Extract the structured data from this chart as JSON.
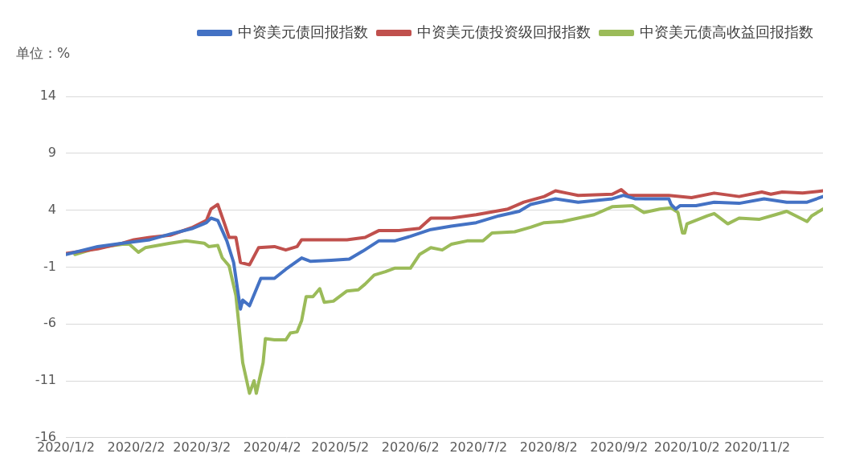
{
  "chart_data": {
    "type": "line",
    "ylabel": "单位：%",
    "legend": "top",
    "grid": "y",
    "marker": "none",
    "line_style": "solid",
    "xlim": [
      "2020-01-02",
      "2020-12-01"
    ],
    "ylim": [
      -16,
      14
    ],
    "yticks": [
      -16,
      -11,
      -6,
      -1,
      4,
      9,
      14
    ],
    "xticks": [
      {
        "value": "2020-01-02",
        "label": "2020/1/2"
      },
      {
        "value": "2020-02-02",
        "label": "2020/2/2"
      },
      {
        "value": "2020-03-02",
        "label": "2020/3/2"
      },
      {
        "value": "2020-04-02",
        "label": "2020/4/2"
      },
      {
        "value": "2020-05-02",
        "label": "2020/5/2"
      },
      {
        "value": "2020-06-02",
        "label": "2020/6/2"
      },
      {
        "value": "2020-07-02",
        "label": "2020/7/2"
      },
      {
        "value": "2020-08-02",
        "label": "2020/8/2"
      },
      {
        "value": "2020-09-02",
        "label": "2020/9/2"
      },
      {
        "value": "2020-10-02",
        "label": "2020/10/2"
      },
      {
        "value": "2020-11-02",
        "label": "2020/11/2"
      }
    ],
    "series": [
      {
        "name": "中资美元债回报指数",
        "color": "#4472c4",
        "x": [
          "2020-01-02",
          "2020-01-16",
          "2020-01-27",
          "2020-02-08",
          "2020-02-17",
          "2020-02-27",
          "2020-03-04",
          "2020-03-06",
          "2020-03-09",
          "2020-03-13",
          "2020-03-16",
          "2020-03-19",
          "2020-03-20",
          "2020-03-23",
          "2020-03-28",
          "2020-04-03",
          "2020-04-08",
          "2020-04-15",
          "2020-04-19",
          "2020-04-28",
          "2020-05-06",
          "2020-05-12",
          "2020-05-19",
          "2020-05-26",
          "2020-06-02",
          "2020-06-11",
          "2020-06-20",
          "2020-07-01",
          "2020-07-11",
          "2020-07-20",
          "2020-07-25",
          "2020-08-05",
          "2020-08-15",
          "2020-08-30",
          "2020-09-04",
          "2020-09-09",
          "2020-09-24",
          "2020-09-25",
          "2020-09-27",
          "2020-09-29",
          "2020-10-06",
          "2020-10-14",
          "2020-10-25",
          "2020-11-05",
          "2020-11-15",
          "2020-11-24",
          "2020-12-01"
        ],
        "values": [
          0.1,
          0.8,
          1.1,
          1.4,
          1.9,
          2.4,
          2.9,
          3.3,
          3.1,
          1.3,
          -0.6,
          -4.7,
          -3.9,
          -4.4,
          -2.0,
          -2.0,
          -1.2,
          -0.2,
          -0.5,
          -0.4,
          -0.3,
          0.4,
          1.3,
          1.3,
          1.7,
          2.3,
          2.6,
          2.9,
          3.5,
          3.9,
          4.5,
          5.0,
          4.7,
          5.0,
          5.3,
          5.0,
          5.0,
          4.5,
          4.1,
          4.4,
          4.4,
          4.7,
          4.6,
          5.0,
          4.7,
          4.7,
          5.2
        ]
      },
      {
        "name": "中资美元债投资级回报指数",
        "color": "#c0504d",
        "x": [
          "2020-01-02",
          "2020-01-16",
          "2020-01-27",
          "2020-02-01",
          "2020-02-08",
          "2020-02-17",
          "2020-02-27",
          "2020-03-04",
          "2020-03-06",
          "2020-03-09",
          "2020-03-12",
          "2020-03-14",
          "2020-03-17",
          "2020-03-19",
          "2020-03-23",
          "2020-03-27",
          "2020-04-03",
          "2020-04-08",
          "2020-04-13",
          "2020-04-15",
          "2020-04-24",
          "2020-05-05",
          "2020-05-13",
          "2020-05-19",
          "2020-05-28",
          "2020-06-06",
          "2020-06-11",
          "2020-06-20",
          "2020-07-01",
          "2020-07-15",
          "2020-07-22",
          "2020-07-31",
          "2020-08-05",
          "2020-08-10",
          "2020-08-15",
          "2020-08-30",
          "2020-09-03",
          "2020-09-06",
          "2020-09-24",
          "2020-10-04",
          "2020-10-14",
          "2020-10-25",
          "2020-11-04",
          "2020-11-08",
          "2020-11-13",
          "2020-11-22",
          "2020-12-01"
        ],
        "values": [
          0.2,
          0.6,
          1.1,
          1.4,
          1.6,
          1.8,
          2.5,
          3.1,
          4.1,
          4.5,
          2.8,
          1.6,
          1.6,
          -0.6,
          -0.8,
          0.7,
          0.8,
          0.5,
          0.8,
          1.4,
          1.4,
          1.4,
          1.6,
          2.2,
          2.2,
          2.4,
          3.3,
          3.3,
          3.6,
          4.1,
          4.7,
          5.2,
          5.7,
          5.5,
          5.3,
          5.4,
          5.8,
          5.3,
          5.3,
          5.1,
          5.5,
          5.2,
          5.6,
          5.4,
          5.6,
          5.5,
          5.7
        ]
      },
      {
        "name": "中资美元债高收益回报指数",
        "color": "#9bbb59",
        "x": [
          "2020-01-06",
          "2020-01-16",
          "2020-01-27",
          "2020-01-30",
          "2020-02-03",
          "2020-02-06",
          "2020-02-17",
          "2020-02-24",
          "2020-03-03",
          "2020-03-05",
          "2020-03-09",
          "2020-03-11",
          "2020-03-14",
          "2020-03-17",
          "2020-03-20",
          "2020-03-23",
          "2020-03-25",
          "2020-03-26",
          "2020-03-29",
          "2020-03-30",
          "2020-04-03",
          "2020-04-08",
          "2020-04-10",
          "2020-04-13",
          "2020-04-15",
          "2020-04-17",
          "2020-04-20",
          "2020-04-23",
          "2020-04-25",
          "2020-04-29",
          "2020-05-05",
          "2020-05-10",
          "2020-05-13",
          "2020-05-17",
          "2020-05-22",
          "2020-05-26",
          "2020-06-02",
          "2020-06-06",
          "2020-06-11",
          "2020-06-16",
          "2020-06-20",
          "2020-06-27",
          "2020-07-04",
          "2020-07-08",
          "2020-07-18",
          "2020-07-25",
          "2020-07-31",
          "2020-08-08",
          "2020-08-22",
          "2020-08-30",
          "2020-09-08",
          "2020-09-13",
          "2020-09-20",
          "2020-09-25",
          "2020-09-28",
          "2020-09-30",
          "2020-10-01",
          "2020-10-02",
          "2020-10-11",
          "2020-10-14",
          "2020-10-20",
          "2020-10-25",
          "2020-11-03",
          "2020-11-10",
          "2020-11-15",
          "2020-11-18",
          "2020-11-24",
          "2020-11-26",
          "2020-12-01"
        ],
        "values": [
          0.1,
          0.7,
          1.0,
          1.0,
          0.3,
          0.7,
          1.1,
          1.3,
          1.1,
          0.8,
          0.9,
          -0.2,
          -0.9,
          -3.5,
          -9.4,
          -12.1,
          -11.0,
          -12.1,
          -9.4,
          -7.3,
          -7.4,
          -7.4,
          -6.8,
          -6.7,
          -5.7,
          -3.6,
          -3.6,
          -2.9,
          -4.1,
          -4.0,
          -3.1,
          -3.0,
          -2.5,
          -1.7,
          -1.4,
          -1.1,
          -1.1,
          0.1,
          0.7,
          0.5,
          1.0,
          1.3,
          1.3,
          2.0,
          2.1,
          2.5,
          2.9,
          3.0,
          3.6,
          4.3,
          4.4,
          3.8,
          4.1,
          4.2,
          3.8,
          2.0,
          2.0,
          2.8,
          3.5,
          3.7,
          2.8,
          3.3,
          3.2,
          3.6,
          3.9,
          3.6,
          3.0,
          3.5,
          4.1
        ]
      }
    ]
  }
}
